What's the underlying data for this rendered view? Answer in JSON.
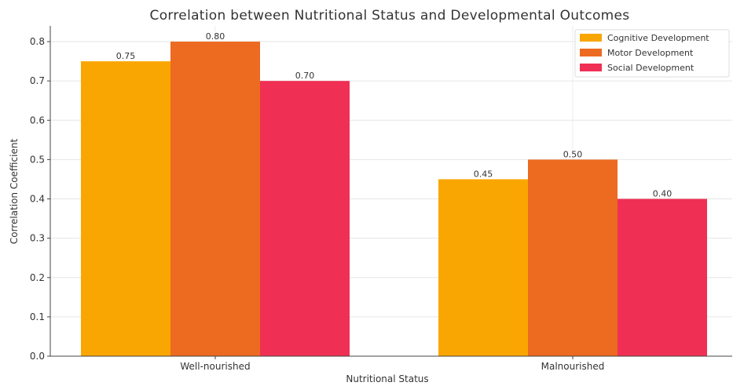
{
  "chart_data": {
    "type": "bar",
    "title": "Correlation between Nutritional Status and Developmental Outcomes",
    "xlabel": "Nutritional Status",
    "ylabel": "Correlation Coefficient",
    "categories": [
      "Well-nourished",
      "Malnourished"
    ],
    "series": [
      {
        "name": "Cognitive Development",
        "values": [
          0.75,
          0.45
        ],
        "color": "#F9A602"
      },
      {
        "name": "Motor Development",
        "values": [
          0.8,
          0.5
        ],
        "color": "#ED6A21"
      },
      {
        "name": "Social Development",
        "values": [
          0.7,
          0.4
        ],
        "color": "#F02F54"
      }
    ],
    "data_labels": [
      [
        "0.75",
        "0.45"
      ],
      [
        "0.80",
        "0.50"
      ],
      [
        "0.70",
        "0.40"
      ]
    ],
    "ylim": [
      0,
      0.84
    ],
    "yticks": [
      0.0,
      0.1,
      0.2,
      0.3,
      0.4,
      0.5,
      0.6,
      0.7,
      0.8
    ],
    "ytick_labels": [
      "0.0",
      "0.1",
      "0.2",
      "0.3",
      "0.4",
      "0.5",
      "0.6",
      "0.7",
      "0.8"
    ],
    "grid": true,
    "legend_position": "top-right"
  }
}
